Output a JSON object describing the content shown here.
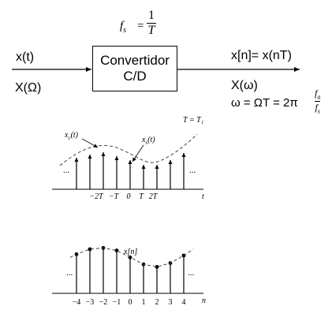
{
  "header": {
    "fs_symbol": "f",
    "fs_sub": "s",
    "eq": "=",
    "num": "1",
    "den": "T"
  },
  "input": {
    "time": "x(t)",
    "freq": "X(Ω)"
  },
  "converter": {
    "line1": "Convertidor",
    "line2": "C/D"
  },
  "output": {
    "time": "x[n]= x(nT)",
    "freq": "X(ω)",
    "relation_lhs": "ω = ΩT = 2π",
    "ratio_num": "f",
    "ratio_num_sub": "a",
    "ratio_den": "f",
    "ratio_den_sub": "s"
  },
  "plot1": {
    "period_label": "T = T₁",
    "xc_label": "x",
    "xc_sub": "c",
    "xc_arg": "(t)",
    "xs_label": "x",
    "xs_sub": "s",
    "xs_arg": "(t)",
    "ellipsis": "...",
    "ticks": [
      "−2T",
      "−T",
      "0",
      "T",
      "2T"
    ],
    "axis_label": "t"
  },
  "plot2": {
    "seq_label": "x[n]",
    "ellipsis": "...",
    "ticks": [
      "−4",
      "−3",
      "−2",
      "−1",
      "0",
      "1",
      "2",
      "3",
      "4"
    ],
    "axis_label": "n",
    "stem_values": [
      0.62,
      0.7,
      0.72,
      0.68,
      0.57,
      0.46,
      0.42,
      0.48,
      0.6
    ]
  },
  "colors": {
    "line": "#000000",
    "dash": "#444444"
  }
}
